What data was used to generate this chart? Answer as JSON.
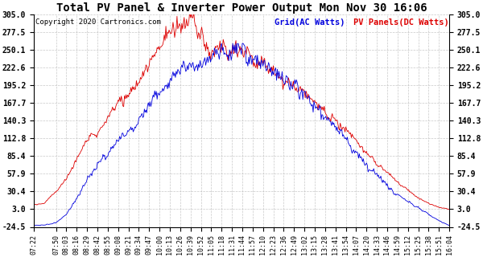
{
  "title": "Total PV Panel & Inverter Power Output Mon Nov 30 16:06",
  "copyright": "Copyright 2020 Cartronics.com",
  "legend_blue": "Grid(AC Watts)",
  "legend_red": "PV Panels(DC Watts)",
  "yticks": [
    305.0,
    277.5,
    250.1,
    222.6,
    195.2,
    167.7,
    140.3,
    112.8,
    85.4,
    57.9,
    30.4,
    3.0,
    -24.5
  ],
  "ylim": [
    -24.5,
    305.0
  ],
  "background_color": "#ffffff",
  "grid_color": "#bbbbbb",
  "line_color_blue": "#0000dd",
  "line_color_red": "#dd0000",
  "title_color": "#000000",
  "copyright_color": "#000000",
  "legend_blue_color": "#0000dd",
  "legend_red_color": "#dd0000",
  "tick_times": [
    "07:22",
    "07:50",
    "08:03",
    "08:16",
    "08:29",
    "08:42",
    "08:55",
    "09:08",
    "09:21",
    "09:34",
    "09:47",
    "10:00",
    "10:13",
    "10:26",
    "10:39",
    "10:52",
    "11:05",
    "11:18",
    "11:31",
    "11:44",
    "11:57",
    "12:10",
    "12:23",
    "12:36",
    "12:49",
    "13:02",
    "13:15",
    "13:28",
    "13:41",
    "13:54",
    "14:07",
    "14:20",
    "14:33",
    "14:46",
    "14:59",
    "15:12",
    "15:25",
    "15:38",
    "15:51",
    "16:04"
  ],
  "start_hhmm": "07:22",
  "end_hhmm": "16:04"
}
